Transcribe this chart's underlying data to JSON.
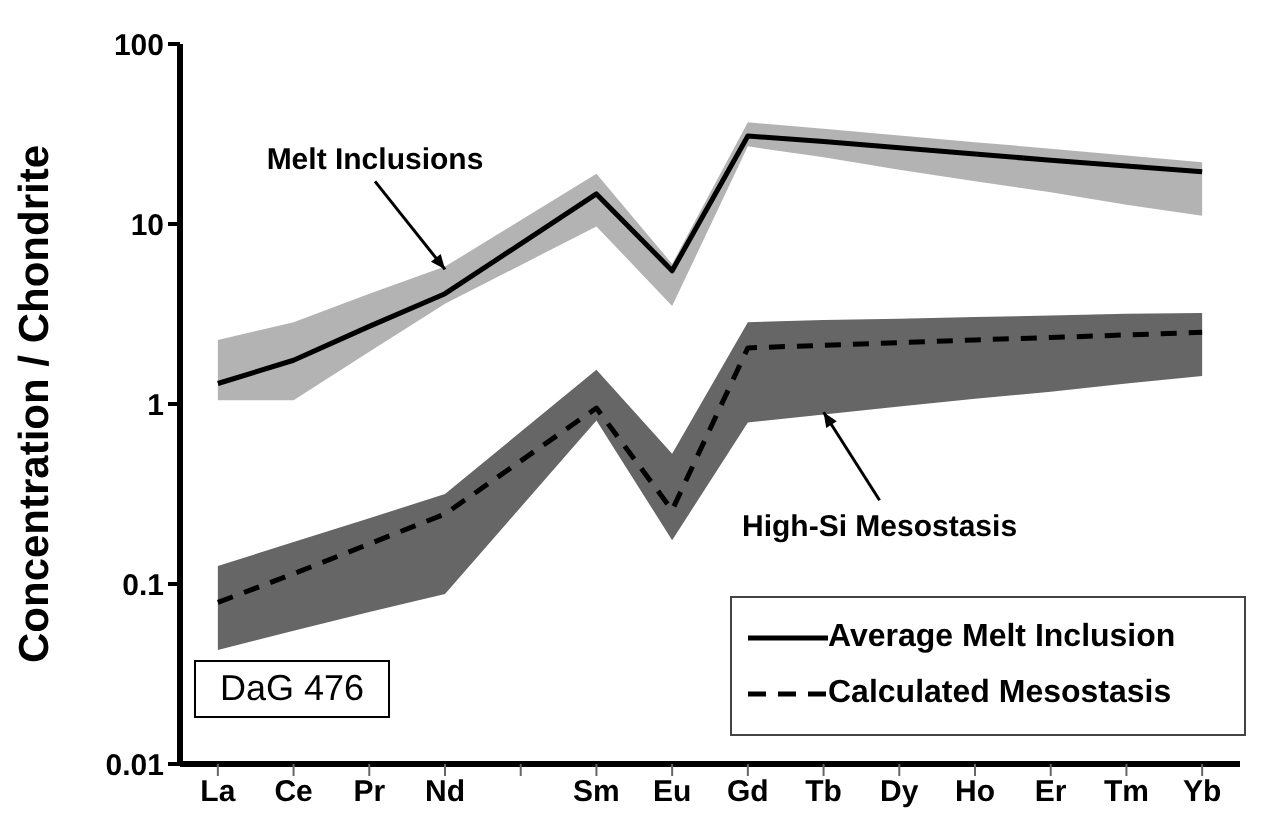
{
  "chart_data": {
    "type": "line",
    "ylabel": "Concentration / Chondrite",
    "categories": [
      "La",
      "Ce",
      "Pr",
      "Nd",
      null,
      "Sm",
      "Eu",
      "Gd",
      "Tb",
      "Dy",
      "Ho",
      "Er",
      "Tm",
      "Yb"
    ],
    "series": [
      {
        "name": "Average Melt Inclusion",
        "color": "#000000",
        "line_style": "solid",
        "values": [
          1.3,
          1.75,
          2.7,
          4.1,
          null,
          14.7,
          5.5,
          30.8,
          28.7,
          26.5,
          24.5,
          22.6,
          21,
          19.5
        ],
        "lower": [
          1.05,
          1.05,
          1.95,
          3.6,
          null,
          9.7,
          3.5,
          27,
          23.5,
          20,
          17.3,
          15,
          12.8,
          11.1
        ],
        "upper": [
          2.27,
          2.85,
          4.1,
          5.8,
          null,
          19,
          6,
          36.7,
          33.8,
          31,
          28.5,
          26.2,
          24,
          22
        ]
      },
      {
        "name": "Calculated Mesostasis",
        "color": "#000000",
        "line_style": "dashed",
        "values": [
          0.079,
          0.114,
          0.167,
          0.245,
          null,
          0.95,
          0.257,
          2.05,
          2.12,
          2.19,
          2.27,
          2.34,
          2.42,
          2.5
        ],
        "lower": [
          0.043,
          0.055,
          0.07,
          0.088,
          null,
          0.81,
          0.175,
          0.79,
          0.875,
          0.97,
          1.07,
          1.17,
          1.3,
          1.43
        ],
        "upper": [
          0.126,
          0.171,
          0.232,
          0.316,
          null,
          1.55,
          0.53,
          2.85,
          2.93,
          2.98,
          3.04,
          3.1,
          3.17,
          3.2
        ]
      }
    ],
    "log": true,
    "ylim": [
      0.01,
      100
    ],
    "yticks": [
      0.01,
      0.1,
      1,
      10,
      100
    ],
    "grid": false,
    "legend": "bottom right",
    "marker": "none",
    "annotations": [
      {
        "text": "Melt Inclusions",
        "x": "Nd",
        "y": 5.6
      },
      {
        "text": "High-Si Mesostasis",
        "x": "Tb",
        "y": 0.9
      },
      "DaG 476"
    ]
  }
}
